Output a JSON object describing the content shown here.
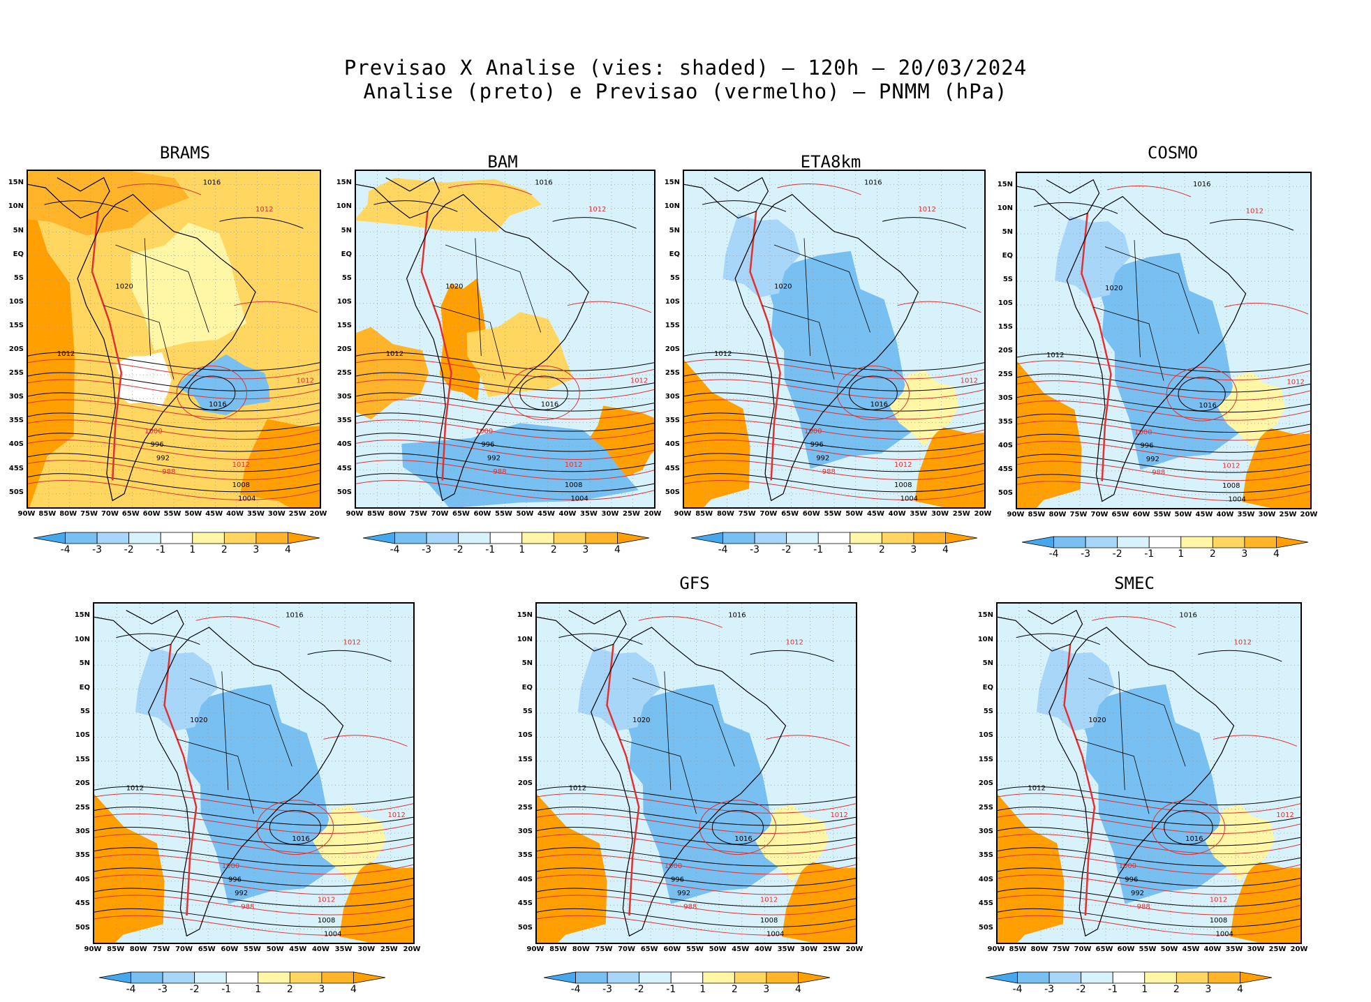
{
  "header": {
    "line1": "Previsao X Analise (vies: shaded) – 120h – 20/03/2024",
    "line2": "Analise (preto) e Previsao (vermelho) – PNMM (hPa)"
  },
  "axes": {
    "lat_labels": [
      "15N",
      "10N",
      "5N",
      "EQ",
      "5S",
      "10S",
      "15S",
      "20S",
      "25S",
      "30S",
      "35S",
      "40S",
      "45S",
      "50S"
    ],
    "lon_labels": [
      "90W",
      "85W",
      "80W",
      "75W",
      "70W",
      "65W",
      "60W",
      "55W",
      "50W",
      "45W",
      "40W",
      "35W",
      "30W",
      "25W",
      "20W"
    ]
  },
  "colorbar": {
    "labels": [
      "-4",
      "-3",
      "-2",
      "-1",
      "1",
      "2",
      "3",
      "4"
    ],
    "colors": [
      "#46a8ec",
      "#78bff2",
      "#a8d6f8",
      "#d8f2fc",
      "#ffffff",
      "#fff6a6",
      "#ffd760",
      "#ffb42a",
      "#ffa000"
    ]
  },
  "colors": {
    "analysis": "#000000",
    "forecast": "#e03030"
  },
  "panels": [
    {
      "name": "BRAMS",
      "bias": "warm"
    },
    {
      "name": "BAM",
      "bias": "mixed"
    },
    {
      "name": "ETA8km",
      "bias": "cold"
    },
    {
      "name": "COSMO",
      "bias": "cold"
    },
    {
      "name": "",
      "bias": "cold"
    },
    {
      "name": "GFS",
      "bias": "cold"
    },
    {
      "name": "SMEC",
      "bias": "cold"
    }
  ],
  "isobar_labels": [
    "1016",
    "1012",
    "1008",
    "1004",
    "1000",
    "996",
    "992",
    "988",
    "1020"
  ]
}
